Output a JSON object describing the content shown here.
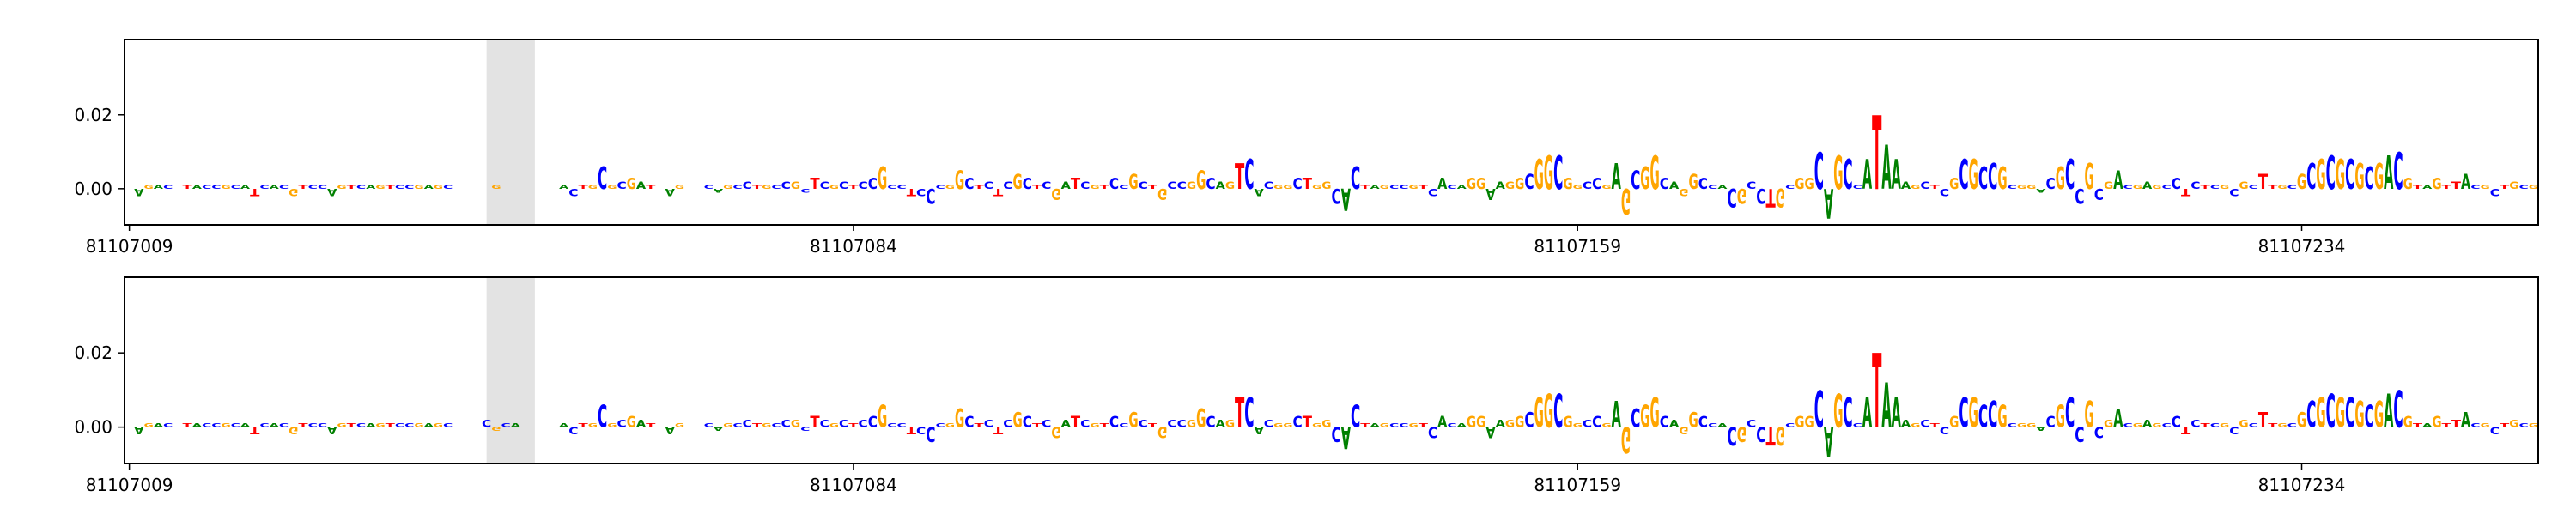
{
  "chart_data": [
    {
      "type": "logo",
      "bases": "TAGACTTACCGCATCACGTCCAGTCAGTCCGAGCAATCGCATCGTACTGCGCGATCAGTCCAGCCTGCCGCTCGCTCCGCCTCCCGGCTCTCGCTCGATCGTCCGCTGCCGGCAGTCACGGCTGGCACTAGCCGTCACAGGAAGGCGGCGGCCGAGCGGCAGGCCACGCCTGCGGCAGCCATAAAGCTCGCGCCGCGGACGCCGCGACGAGCCTCTCGCGCTTGCGCGCGCGCGACGTAGTTACGCTGCG",
      "values": [
        0.0,
        -0.002,
        0.001,
        0.001,
        0.001,
        0.0,
        0.001,
        0.001,
        0.001,
        0.001,
        0.001,
        0.001,
        0.001,
        -0.002,
        0.001,
        0.001,
        0.001,
        -0.002,
        0.001,
        0.001,
        0.001,
        -0.002,
        0.001,
        0.001,
        0.001,
        0.001,
        0.001,
        0.001,
        0.001,
        0.001,
        0.001,
        0.001,
        0.001,
        0.001,
        0.0,
        0.0,
        0.0,
        0.0,
        0.001,
        0.0,
        0.0,
        0.0,
        0.0,
        0.0,
        0.0,
        0.001,
        -0.002,
        0.001,
        0.001,
        0.006,
        0.001,
        0.002,
        0.003,
        0.002,
        0.001,
        0.0,
        -0.002,
        0.001,
        0.0,
        0.0,
        0.001,
        -0.001,
        0.001,
        0.001,
        0.002,
        0.001,
        0.001,
        0.001,
        0.002,
        0.002,
        -0.001,
        0.003,
        0.002,
        0.001,
        0.002,
        0.001,
        0.002,
        0.003,
        0.006,
        0.001,
        0.001,
        -0.002,
        -0.002,
        -0.004,
        0.001,
        0.001,
        0.005,
        0.003,
        0.001,
        0.002,
        -0.002,
        0.002,
        0.004,
        0.003,
        0.001,
        0.002,
        -0.003,
        0.002,
        0.003,
        0.002,
        0.001,
        0.001,
        0.003,
        0.001,
        0.004,
        0.002,
        0.001,
        -0.003,
        0.002,
        0.002,
        0.002,
        0.005,
        0.003,
        0.002,
        0.002,
        0.007,
        0.008,
        -0.002,
        0.002,
        0.001,
        0.001,
        0.003,
        0.003,
        0.001,
        0.002,
        -0.004,
        -0.006,
        0.006,
        0.001,
        0.001,
        0.001,
        0.001,
        0.001,
        0.001,
        0.001,
        -0.002,
        0.003,
        0.001,
        0.001,
        0.003,
        0.003,
        -0.003,
        0.002,
        0.002,
        0.003,
        0.004,
        0.008,
        0.009,
        0.009,
        0.003,
        0.001,
        0.002,
        0.003,
        0.001,
        0.007,
        -0.007,
        0.005,
        0.006,
        0.009,
        0.003,
        0.002,
        -0.002,
        0.004,
        0.003,
        0.001,
        0.001,
        -0.005,
        -0.004,
        0.002,
        -0.004,
        -0.005,
        -0.005,
        0.001,
        0.003,
        0.003,
        0.01,
        -0.008,
        0.009,
        0.008,
        0.001,
        0.008,
        0.02,
        0.012,
        0.008,
        0.002,
        0.001,
        0.002,
        0.001,
        -0.002,
        0.003,
        0.008,
        0.008,
        0.006,
        0.007,
        0.006,
        0.001,
        0.001,
        0.001,
        -0.001,
        0.003,
        0.006,
        0.008,
        -0.004,
        0.007,
        -0.003,
        0.002,
        0.005,
        0.001,
        0.001,
        0.002,
        0.001,
        0.001,
        0.003,
        -0.002,
        0.002,
        0.001,
        0.001,
        0.001,
        -0.002,
        0.002,
        0.001,
        0.004,
        0.001,
        0.001,
        0.001,
        0.004,
        0.007,
        0.008,
        0.009,
        0.008,
        0.008,
        0.007,
        0.006,
        0.007,
        0.009,
        0.01,
        0.003,
        0.001,
        0.001,
        0.003,
        0.001,
        0.002,
        0.004,
        0.001,
        0.001,
        -0.002,
        0.001,
        0.002,
        0.001,
        0.001
      ],
      "colors": {
        "A": "#008000",
        "C": "#0000ff",
        "G": "#ffa500",
        "T": "#ff0000"
      },
      "highlight": [
        81107046,
        81107051
      ],
      "xlim": [
        81107008.5,
        81107258.5
      ],
      "xticks": [
        81107009,
        81107084,
        81107159,
        81107234
      ],
      "ylim": [
        -0.0098,
        0.0404
      ],
      "yticks": [
        {
          "value": 0,
          "label": "0.00"
        },
        {
          "value": 0.02,
          "label": "0.02"
        }
      ]
    },
    {
      "type": "logo",
      "bases": "TAGACTTACCGCATCACGTCCAGTCAGTCCGAGCAATCGCATCGTACTGCGCGATCAGTCCAGCCTGCCGCTCGCTCCGCCTCCCGGCTCTCGCTCGATCGTCCGCTGCCGGCAGTCACGGCTGGCACTAGCCGTCACAGGAAGGCGGCGGCCGAGCGGCAGGCCACGCCTGCGGCAGCCATAAAGCTCGCGCCGCGGACGCCGCGACGAGCCTCTCGCGCTTGCGCGCGCGCGACGTAGTTACGCTGCG",
      "values": [
        0.0,
        -0.002,
        0.001,
        0.001,
        0.001,
        0.0,
        0.001,
        0.001,
        0.001,
        0.001,
        0.001,
        0.001,
        0.001,
        -0.002,
        0.001,
        0.001,
        0.001,
        -0.002,
        0.001,
        0.001,
        0.001,
        -0.002,
        0.001,
        0.001,
        0.001,
        0.001,
        0.001,
        0.001,
        0.001,
        0.001,
        0.001,
        0.001,
        0.001,
        0.001,
        0.0,
        0.0,
        0.0,
        0.002,
        -0.001,
        0.001,
        0.001,
        0.0,
        0.0,
        0.0,
        0.0,
        0.001,
        -0.002,
        0.001,
        0.001,
        0.006,
        0.001,
        0.002,
        0.003,
        0.002,
        0.001,
        0.0,
        -0.002,
        0.001,
        0.0,
        0.0,
        0.001,
        -0.001,
        0.001,
        0.001,
        0.002,
        0.001,
        0.001,
        0.001,
        0.002,
        0.002,
        -0.001,
        0.003,
        0.002,
        0.001,
        0.002,
        0.001,
        0.002,
        0.003,
        0.006,
        0.001,
        0.001,
        -0.002,
        -0.002,
        -0.004,
        0.001,
        0.001,
        0.005,
        0.003,
        0.001,
        0.002,
        -0.002,
        0.002,
        0.004,
        0.003,
        0.001,
        0.002,
        -0.003,
        0.002,
        0.003,
        0.002,
        0.001,
        0.001,
        0.003,
        0.001,
        0.004,
        0.002,
        0.001,
        -0.003,
        0.002,
        0.002,
        0.002,
        0.005,
        0.003,
        0.002,
        0.002,
        0.008,
        0.008,
        -0.002,
        0.002,
        0.001,
        0.001,
        0.003,
        0.003,
        0.001,
        0.002,
        -0.004,
        -0.006,
        0.006,
        0.001,
        0.001,
        0.001,
        0.001,
        0.001,
        0.001,
        0.001,
        -0.003,
        0.003,
        0.001,
        0.001,
        0.003,
        0.003,
        -0.003,
        0.002,
        0.002,
        0.003,
        0.004,
        0.008,
        0.009,
        0.009,
        0.003,
        0.001,
        0.002,
        0.003,
        0.001,
        0.007,
        -0.007,
        0.005,
        0.006,
        0.008,
        0.003,
        0.002,
        -0.002,
        0.004,
        0.003,
        0.001,
        0.001,
        -0.005,
        -0.004,
        0.002,
        -0.004,
        -0.005,
        -0.005,
        0.001,
        0.003,
        0.003,
        0.01,
        -0.008,
        0.009,
        0.008,
        0.001,
        0.008,
        0.02,
        0.012,
        0.008,
        0.002,
        0.001,
        0.002,
        0.001,
        -0.002,
        0.003,
        0.008,
        0.008,
        0.006,
        0.007,
        0.006,
        0.001,
        0.001,
        0.001,
        -0.001,
        0.003,
        0.006,
        0.008,
        -0.004,
        0.007,
        -0.003,
        0.002,
        0.005,
        0.001,
        0.001,
        0.002,
        0.001,
        0.001,
        0.003,
        -0.002,
        0.002,
        0.001,
        0.001,
        0.001,
        -0.002,
        0.002,
        0.001,
        0.004,
        0.001,
        0.001,
        0.001,
        0.004,
        0.007,
        0.008,
        0.009,
        0.008,
        0.008,
        0.007,
        0.006,
        0.007,
        0.009,
        0.01,
        0.003,
        0.001,
        0.001,
        0.003,
        0.001,
        0.002,
        0.004,
        0.001,
        0.001,
        -0.002,
        0.001,
        0.002,
        0.001,
        0.001
      ],
      "colors": {
        "A": "#008000",
        "C": "#0000ff",
        "G": "#ffa500",
        "T": "#ff0000"
      },
      "highlight": [
        81107046,
        81107051
      ],
      "xlim": [
        81107008.5,
        81107258.5
      ],
      "xticks": [
        81107009,
        81107084,
        81107159,
        81107234
      ],
      "ylim": [
        -0.0098,
        0.0404
      ],
      "yticks": [
        {
          "value": 0,
          "label": "0.00"
        },
        {
          "value": 0.02,
          "label": "0.02"
        }
      ]
    }
  ]
}
